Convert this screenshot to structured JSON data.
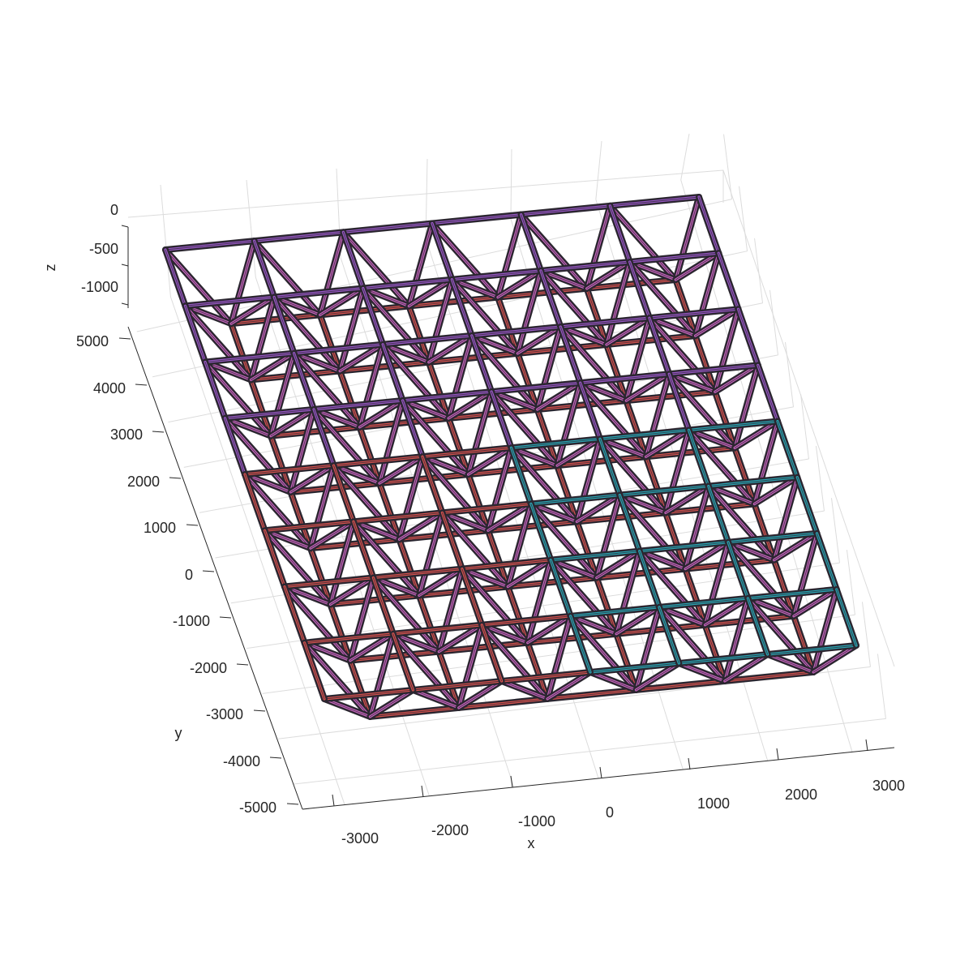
{
  "axes": {
    "x": {
      "label": "x",
      "ticks": [
        "-3000",
        "-2000",
        "-1000",
        "0",
        "1000",
        "2000",
        "3000"
      ]
    },
    "y": {
      "label": "y",
      "ticks": [
        "-5000",
        "-4000",
        "-3000",
        "-2000",
        "-1000",
        "0",
        "1000",
        "2000",
        "3000",
        "4000",
        "5000"
      ]
    },
    "z": {
      "label": "z",
      "ticks": [
        "-1000",
        "-500",
        "0"
      ]
    }
  },
  "colors": {
    "top_chord": "#9b59c9",
    "bottom_chord": "#d9534f",
    "diagonal": "#c965c0",
    "highlight": "#2aa7b5",
    "tube_edge": "#2b2630",
    "grid": "#dcdcdc",
    "axis": "#262626"
  },
  "structure": {
    "type": "space-truss",
    "top_grid": {
      "cols": 6,
      "rows": 8
    },
    "bottom_grid": {
      "cols": 5,
      "rows": 7
    },
    "highlight_region": {
      "col_from": 3,
      "col_to": 6,
      "row_from": 0,
      "row_to": 4
    }
  }
}
